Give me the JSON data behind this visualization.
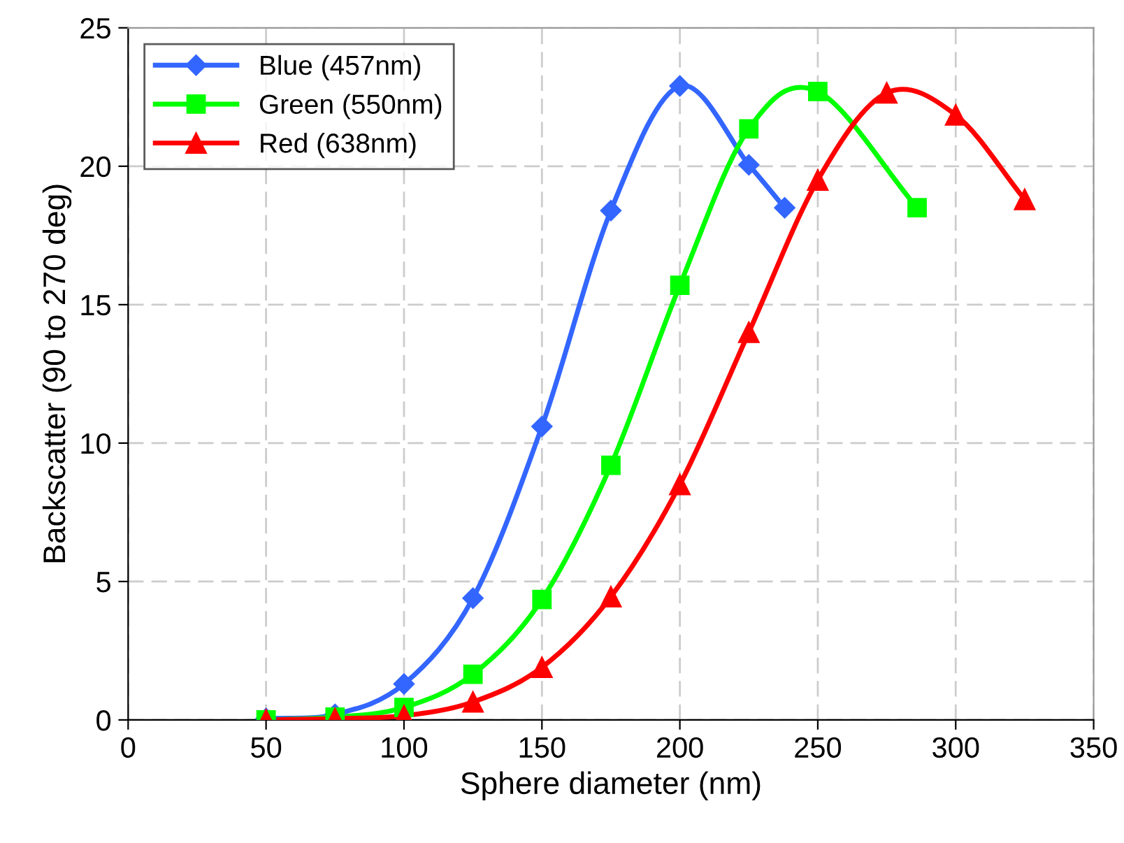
{
  "chart_data": {
    "type": "line",
    "xlabel": "Sphere diameter (nm)",
    "ylabel": "Backscatter (90 to 270 deg)",
    "xlim": [
      0,
      350
    ],
    "xticks": [
      0,
      50,
      100,
      150,
      200,
      250,
      300,
      350
    ],
    "ylim": [
      0,
      25
    ],
    "yticks": [
      0,
      5,
      10,
      15,
      20,
      25
    ],
    "grid": true,
    "legend": "top left",
    "line_style": "solid",
    "series": [
      {
        "name": "Blue (457nm)",
        "color": "#3366ff",
        "marker": "diamond",
        "x": [
          50,
          75,
          100,
          125,
          150,
          175,
          200,
          225,
          238
        ],
        "values": [
          0.05,
          0.2,
          1.3,
          4.4,
          10.6,
          18.4,
          22.9,
          20.05,
          18.5
        ]
      },
      {
        "name": "Green (550nm)",
        "color": "#00ff00",
        "marker": "square",
        "x": [
          50,
          75,
          100,
          125,
          150,
          175,
          200,
          225,
          250,
          286
        ],
        "values": [
          0,
          0.1,
          0.45,
          1.65,
          4.35,
          9.2,
          15.7,
          21.35,
          22.7,
          18.5
        ]
      },
      {
        "name": "Red (638nm)",
        "color": "#ff0000",
        "marker": "triangle",
        "x": [
          50,
          75,
          100,
          125,
          150,
          175,
          200,
          225,
          250,
          275,
          300,
          325
        ],
        "values": [
          0,
          0.05,
          0.15,
          0.65,
          1.9,
          4.45,
          8.5,
          14.0,
          19.5,
          22.65,
          21.85,
          18.8
        ]
      }
    ]
  }
}
